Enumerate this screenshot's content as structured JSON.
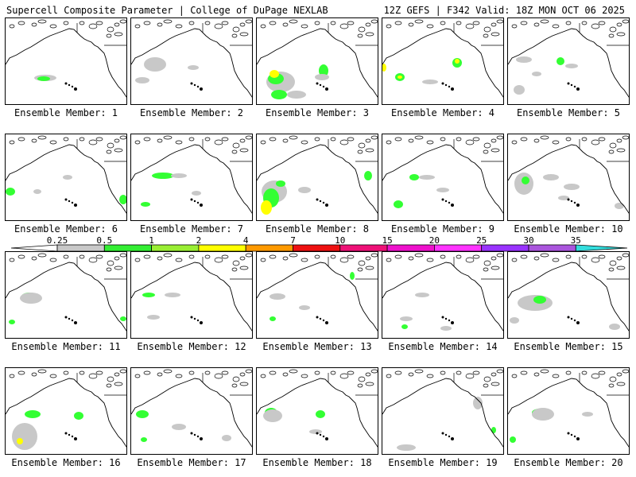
{
  "header": {
    "left": "Supercell Composite Parameter | College of DuPage NEXLAB",
    "right": "12Z GEFS | F342 Valid: 18Z MON OCT 06 2025"
  },
  "members": [
    {
      "label": "Ensemble Member: 1",
      "blobs": [
        [
          "#c8c8c8",
          50,
          75,
          14,
          4
        ],
        [
          "#33ff33",
          48,
          76,
          8,
          3
        ]
      ]
    },
    {
      "label": "Ensemble Member: 2",
      "blobs": [
        [
          "#33ff33",
          28,
          56,
          8,
          6
        ],
        [
          "#c8c8c8",
          30,
          58,
          14,
          9
        ],
        [
          "#c8c8c8",
          14,
          78,
          9,
          4
        ],
        [
          "#c8c8c8",
          78,
          62,
          7,
          3
        ]
      ]
    },
    {
      "label": "Ensemble Member: 3",
      "blobs": [
        [
          "#c8c8c8",
          30,
          80,
          18,
          13
        ],
        [
          "#33ff33",
          24,
          76,
          10,
          7
        ],
        [
          "#ffff00",
          22,
          70,
          6,
          5
        ],
        [
          "#33ff33",
          28,
          96,
          10,
          6
        ],
        [
          "#c8c8c8",
          50,
          96,
          12,
          5
        ],
        [
          "#33ff33",
          84,
          66,
          6,
          8
        ],
        [
          "#c8c8c8",
          82,
          74,
          9,
          4
        ]
      ]
    },
    {
      "label": "Ensemble Member: 4",
      "blobs": [
        [
          "#33ff33",
          94,
          56,
          6,
          6
        ],
        [
          "#ffff00",
          94,
          54,
          3,
          3
        ],
        [
          "#33ff33",
          22,
          74,
          6,
          5
        ],
        [
          "#ffff00",
          22,
          74,
          3,
          2
        ],
        [
          "#ffff00",
          2,
          62,
          3,
          5
        ],
        [
          "#c8c8c8",
          60,
          80,
          10,
          3
        ]
      ]
    },
    {
      "label": "Ensemble Member: 5",
      "blobs": [
        [
          "#33ff33",
          66,
          54,
          5,
          5
        ],
        [
          "#c8c8c8",
          20,
          52,
          10,
          4
        ],
        [
          "#c8c8c8",
          14,
          90,
          7,
          6
        ],
        [
          "#c8c8c8",
          80,
          60,
          8,
          3
        ],
        [
          "#c8c8c8",
          36,
          70,
          6,
          3
        ]
      ]
    },
    {
      "label": "Ensemble Member: 6",
      "blobs": [
        [
          "#33ff33",
          6,
          72,
          6,
          5
        ],
        [
          "#c8c8c8",
          78,
          54,
          6,
          3
        ],
        [
          "#c8c8c8",
          40,
          72,
          5,
          3
        ],
        [
          "#33ff33",
          148,
          82,
          5,
          6
        ]
      ]
    },
    {
      "label": "Ensemble Member: 7",
      "blobs": [
        [
          "#33ff33",
          40,
          52,
          14,
          4
        ],
        [
          "#c8c8c8",
          60,
          52,
          10,
          3
        ],
        [
          "#33ff33",
          18,
          88,
          6,
          3
        ],
        [
          "#c8c8c8",
          82,
          74,
          6,
          3
        ]
      ]
    },
    {
      "label": "Ensemble Member: 8",
      "blobs": [
        [
          "#c8c8c8",
          22,
          72,
          16,
          14
        ],
        [
          "#33ff33",
          18,
          80,
          10,
          12
        ],
        [
          "#ffff00",
          12,
          92,
          7,
          9
        ],
        [
          "#33ff33",
          30,
          62,
          6,
          4
        ],
        [
          "#c8c8c8",
          60,
          70,
          8,
          4
        ],
        [
          "#33ff33",
          140,
          52,
          5,
          6
        ]
      ]
    },
    {
      "label": "Ensemble Member: 9",
      "blobs": [
        [
          "#33ff33",
          40,
          54,
          6,
          4
        ],
        [
          "#c8c8c8",
          56,
          54,
          10,
          3
        ],
        [
          "#33ff33",
          20,
          88,
          6,
          5
        ],
        [
          "#c8c8c8",
          76,
          70,
          8,
          3
        ]
      ]
    },
    {
      "label": "Ensemble Member: 10",
      "blobs": [
        [
          "#c8c8c8",
          20,
          62,
          12,
          14
        ],
        [
          "#33ff33",
          22,
          58,
          5,
          5
        ],
        [
          "#c8c8c8",
          54,
          54,
          10,
          4
        ],
        [
          "#c8c8c8",
          80,
          66,
          10,
          4
        ],
        [
          "#c8c8c8",
          70,
          80,
          7,
          3
        ],
        [
          "#c8c8c8",
          140,
          90,
          6,
          4
        ]
      ]
    },
    {
      "label": "Ensemble Member: 11",
      "blobs": [
        [
          "#33ff33",
          30,
          56,
          10,
          5
        ],
        [
          "#c8c8c8",
          32,
          58,
          14,
          7
        ],
        [
          "#33ff33",
          8,
          88,
          4,
          3
        ],
        [
          "#33ff33",
          148,
          84,
          4,
          3
        ]
      ]
    },
    {
      "label": "Ensemble Member: 12",
      "blobs": [
        [
          "#33ff33",
          22,
          54,
          8,
          3
        ],
        [
          "#c8c8c8",
          52,
          54,
          10,
          3
        ],
        [
          "#c8c8c8",
          28,
          82,
          8,
          3
        ]
      ]
    },
    {
      "label": "Ensemble Member: 13",
      "blobs": [
        [
          "#c8c8c8",
          26,
          56,
          10,
          4
        ],
        [
          "#33ff33",
          20,
          84,
          4,
          3
        ],
        [
          "#c8c8c8",
          60,
          70,
          7,
          3
        ],
        [
          "#33ff33",
          120,
          30,
          3,
          5
        ]
      ]
    },
    {
      "label": "Ensemble Member: 14",
      "blobs": [
        [
          "#c8c8c8",
          50,
          54,
          9,
          3
        ],
        [
          "#c8c8c8",
          30,
          84,
          8,
          3
        ],
        [
          "#33ff33",
          28,
          94,
          4,
          3
        ],
        [
          "#c8c8c8",
          80,
          96,
          7,
          3
        ]
      ]
    },
    {
      "label": "Ensemble Member: 15",
      "blobs": [
        [
          "#c8c8c8",
          34,
          64,
          22,
          10
        ],
        [
          "#33ff33",
          40,
          60,
          8,
          5
        ],
        [
          "#c8c8c8",
          8,
          86,
          6,
          4
        ],
        [
          "#c8c8c8",
          134,
          94,
          7,
          4
        ]
      ]
    },
    {
      "label": "Ensemble Member: 16",
      "blobs": [
        [
          "#33ff33",
          34,
          58,
          10,
          5
        ],
        [
          "#33ff33",
          22,
          84,
          12,
          14
        ],
        [
          "#c8c8c8",
          24,
          86,
          16,
          17
        ],
        [
          "#ffff00",
          18,
          92,
          4,
          4
        ],
        [
          "#33ff33",
          92,
          60,
          6,
          5
        ]
      ]
    },
    {
      "label": "Ensemble Member: 17",
      "blobs": [
        [
          "#33ff33",
          14,
          58,
          8,
          5
        ],
        [
          "#c8c8c8",
          60,
          74,
          9,
          4
        ],
        [
          "#c8c8c8",
          120,
          88,
          6,
          4
        ],
        [
          "#33ff33",
          16,
          90,
          4,
          3
        ]
      ]
    },
    {
      "label": "Ensemble Member: 18",
      "blobs": [
        [
          "#33ff33",
          18,
          56,
          8,
          6
        ],
        [
          "#c8c8c8",
          20,
          60,
          12,
          8
        ],
        [
          "#33ff33",
          80,
          58,
          6,
          5
        ],
        [
          "#c8c8c8",
          74,
          80,
          8,
          3
        ]
      ]
    },
    {
      "label": "Ensemble Member: 19",
      "blobs": [
        [
          "#c8c8c8",
          120,
          44,
          6,
          8
        ],
        [
          "#c8c8c8",
          30,
          100,
          12,
          4
        ],
        [
          "#33ff33",
          140,
          78,
          3,
          4
        ]
      ]
    },
    {
      "label": "Ensemble Member: 20",
      "blobs": [
        [
          "#33ff33",
          40,
          56,
          10,
          5
        ],
        [
          "#c8c8c8",
          44,
          58,
          14,
          8
        ],
        [
          "#33ff33",
          6,
          90,
          4,
          4
        ],
        [
          "#c8c8c8",
          100,
          58,
          7,
          3
        ]
      ]
    }
  ],
  "colorbar": {
    "labels": [
      "0.25",
      "0.5",
      "1",
      "2",
      "4",
      "7",
      "10",
      "15",
      "20",
      "25",
      "30",
      "35"
    ],
    "colors": [
      "#ffffff",
      "#c8c8c8",
      "#33ee33",
      "#99ee33",
      "#ffff00",
      "#ff9900",
      "#ee1111",
      "#ee1177",
      "#ee11cc",
      "#ff33ff",
      "#9933ff",
      "#aa55dd",
      "#33dddd"
    ]
  }
}
